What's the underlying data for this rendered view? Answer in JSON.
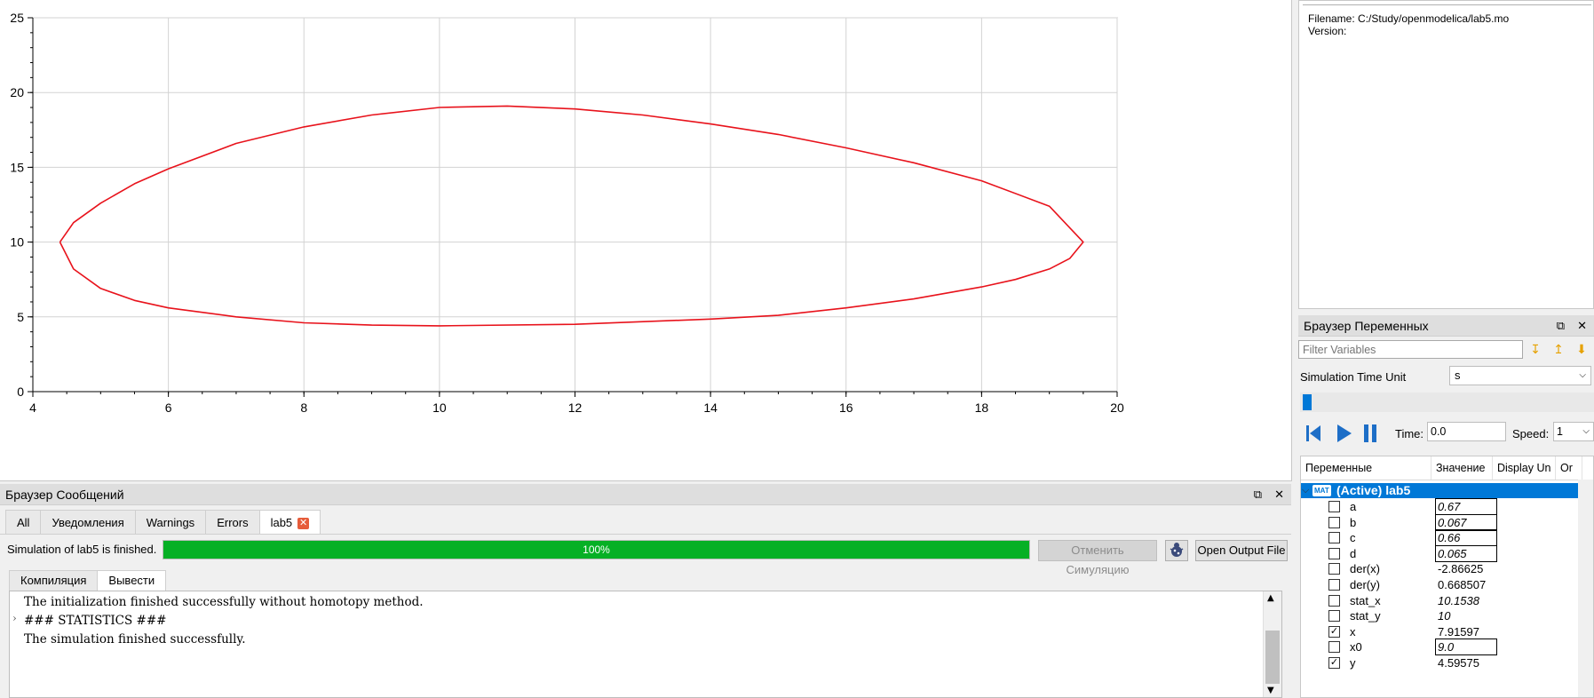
{
  "chart_data": {
    "type": "line",
    "title": "",
    "xlabel": "",
    "ylabel": "",
    "xlim": [
      4,
      20
    ],
    "ylim": [
      0,
      25
    ],
    "x_ticks": [
      "4",
      "6",
      "8",
      "10",
      "12",
      "14",
      "16",
      "18",
      "20"
    ],
    "y_ticks": [
      "0",
      "5",
      "10",
      "15",
      "20",
      "25"
    ],
    "grid": true,
    "series": [
      {
        "color": "#e8121b",
        "points": [
          [
            4.4,
            10.0
          ],
          [
            4.6,
            11.3
          ],
          [
            5.0,
            12.6
          ],
          [
            5.5,
            13.9
          ],
          [
            6.0,
            14.9
          ],
          [
            7.0,
            16.6
          ],
          [
            8.0,
            17.7
          ],
          [
            9.0,
            18.5
          ],
          [
            10.0,
            19.0
          ],
          [
            11.0,
            19.1
          ],
          [
            12.0,
            18.9
          ],
          [
            13.0,
            18.5
          ],
          [
            14.0,
            17.9
          ],
          [
            15.0,
            17.2
          ],
          [
            16.0,
            16.3
          ],
          [
            17.0,
            15.3
          ],
          [
            18.0,
            14.1
          ],
          [
            19.0,
            12.4
          ],
          [
            19.5,
            10.0
          ],
          [
            19.3,
            8.9
          ],
          [
            19.0,
            8.2
          ],
          [
            18.5,
            7.5
          ],
          [
            18.0,
            7.0
          ],
          [
            17.0,
            6.2
          ],
          [
            16.0,
            5.6
          ],
          [
            15.0,
            5.1
          ],
          [
            14.0,
            4.85
          ],
          [
            12.0,
            4.5
          ],
          [
            10.0,
            4.4
          ],
          [
            9.0,
            4.45
          ],
          [
            8.0,
            4.6
          ],
          [
            7.0,
            5.0
          ],
          [
            6.0,
            5.6
          ],
          [
            5.5,
            6.1
          ],
          [
            5.0,
            6.9
          ],
          [
            4.6,
            8.2
          ],
          [
            4.4,
            10.0
          ]
        ]
      }
    ]
  },
  "messages": {
    "title": "Браузер Сообщений",
    "tabs": [
      "All",
      "Уведомления",
      "Warnings",
      "Errors",
      "lab5"
    ],
    "sim_status": "Simulation of lab5 is finished.",
    "progress_value": 1.0,
    "progress_text": "100%",
    "cancel_label": "Отменить Симуляцию",
    "open_output_label": "Open Output File",
    "subtabs": [
      "Компиляция",
      "Вывести"
    ],
    "output_lines": [
      "The initialization finished successfully without homotopy method.",
      "### STATISTICS ###",
      "The simulation finished successfully."
    ]
  },
  "info": {
    "filename": "Filename: C:/Study/openmodelica/lab5.mo",
    "version": "Version:"
  },
  "varbrowser": {
    "title": "Браузер Переменных",
    "filter_placeholder": "Filter Variables",
    "time_unit_label": "Simulation Time Unit",
    "time_unit_value": "s",
    "time_label": "Time:",
    "time_value": "0.0",
    "speed_label": "Speed:",
    "speed_value": "1",
    "columns": [
      "Переменные",
      "Значение",
      "Display Un",
      "Or"
    ],
    "active_model": "(Active) lab5",
    "model_badge": "MAT",
    "variables": [
      {
        "name": "a",
        "value": "0.67",
        "editable": true,
        "checked": false
      },
      {
        "name": "b",
        "value": "0.067",
        "editable": true,
        "checked": false
      },
      {
        "name": "c",
        "value": "0.66",
        "editable": true,
        "checked": false
      },
      {
        "name": "d",
        "value": "0.065",
        "editable": true,
        "checked": false
      },
      {
        "name": "der(x)",
        "value": "-2.86625",
        "editable": false,
        "checked": false
      },
      {
        "name": "der(y)",
        "value": "0.668507",
        "editable": false,
        "checked": false
      },
      {
        "name": "stat_x",
        "value": "10.1538",
        "editable": false,
        "italic": true,
        "checked": false
      },
      {
        "name": "stat_y",
        "value": "10",
        "editable": false,
        "italic": true,
        "checked": false
      },
      {
        "name": "x",
        "value": "7.91597",
        "editable": false,
        "checked": true
      },
      {
        "name": "x0",
        "value": "9.0",
        "editable": true,
        "checked": false
      },
      {
        "name": "y",
        "value": "4.59575",
        "editable": false,
        "checked": true
      }
    ]
  }
}
